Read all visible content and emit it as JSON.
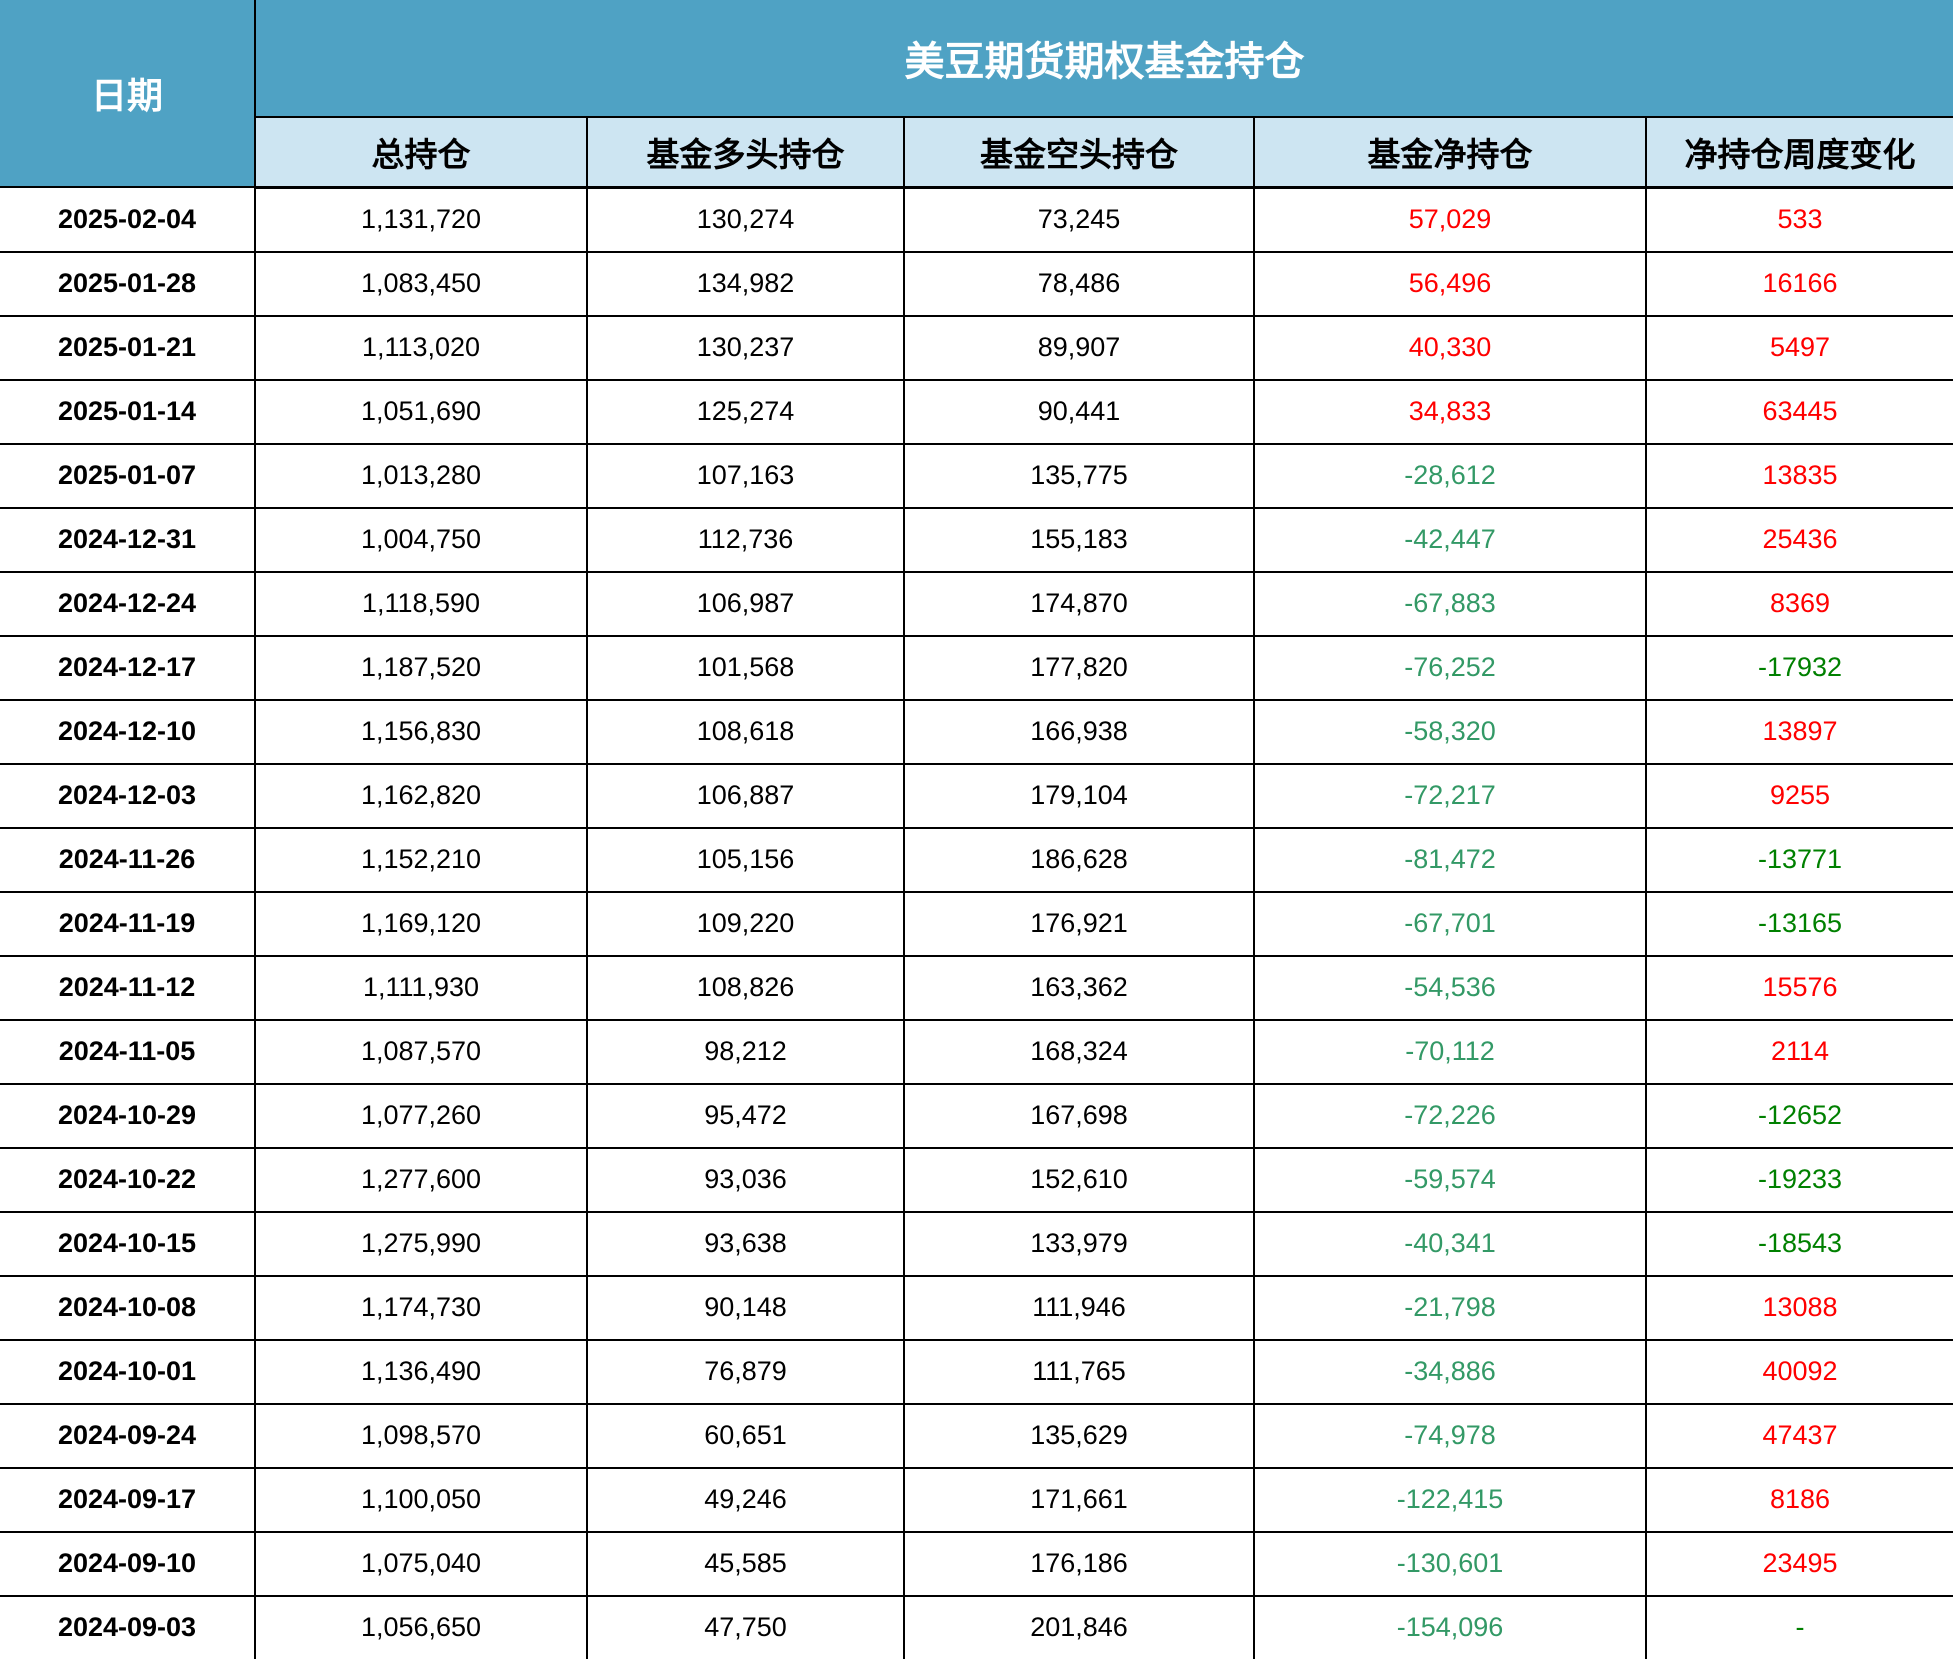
{
  "table": {
    "date_header": "日期",
    "group_header": "美豆期货期权基金持仓",
    "columns": [
      "总持仓",
      "基金多头持仓",
      "基金空头持仓",
      "基金净持仓",
      "净持仓周度变化"
    ],
    "colors": {
      "header_bg": "#4FA2C4",
      "subheader_bg": "#CDE5F2",
      "positive": "#FF0000",
      "negative_net": "#339966",
      "negative_weekly": "#008000",
      "grid": "#000000"
    },
    "rows": [
      {
        "date": "2025-02-04",
        "total": "1,131,720",
        "long": "130,274",
        "short": "73,245",
        "net": "57,029",
        "weekly": "533"
      },
      {
        "date": "2025-01-28",
        "total": "1,083,450",
        "long": "134,982",
        "short": "78,486",
        "net": "56,496",
        "weekly": "16166"
      },
      {
        "date": "2025-01-21",
        "total": "1,113,020",
        "long": "130,237",
        "short": "89,907",
        "net": "40,330",
        "weekly": "5497"
      },
      {
        "date": "2025-01-14",
        "total": "1,051,690",
        "long": "125,274",
        "short": "90,441",
        "net": "34,833",
        "weekly": "63445"
      },
      {
        "date": "2025-01-07",
        "total": "1,013,280",
        "long": "107,163",
        "short": "135,775",
        "net": "-28,612",
        "weekly": "13835"
      },
      {
        "date": "2024-12-31",
        "total": "1,004,750",
        "long": "112,736",
        "short": "155,183",
        "net": "-42,447",
        "weekly": "25436"
      },
      {
        "date": "2024-12-24",
        "total": "1,118,590",
        "long": "106,987",
        "short": "174,870",
        "net": "-67,883",
        "weekly": "8369"
      },
      {
        "date": "2024-12-17",
        "total": "1,187,520",
        "long": "101,568",
        "short": "177,820",
        "net": "-76,252",
        "weekly": "-17932"
      },
      {
        "date": "2024-12-10",
        "total": "1,156,830",
        "long": "108,618",
        "short": "166,938",
        "net": "-58,320",
        "weekly": "13897"
      },
      {
        "date": "2024-12-03",
        "total": "1,162,820",
        "long": "106,887",
        "short": "179,104",
        "net": "-72,217",
        "weekly": "9255"
      },
      {
        "date": "2024-11-26",
        "total": "1,152,210",
        "long": "105,156",
        "short": "186,628",
        "net": "-81,472",
        "weekly": "-13771"
      },
      {
        "date": "2024-11-19",
        "total": "1,169,120",
        "long": "109,220",
        "short": "176,921",
        "net": "-67,701",
        "weekly": "-13165"
      },
      {
        "date": "2024-11-12",
        "total": "1,111,930",
        "long": "108,826",
        "short": "163,362",
        "net": "-54,536",
        "weekly": "15576"
      },
      {
        "date": "2024-11-05",
        "total": "1,087,570",
        "long": "98,212",
        "short": "168,324",
        "net": "-70,112",
        "weekly": "2114"
      },
      {
        "date": "2024-10-29",
        "total": "1,077,260",
        "long": "95,472",
        "short": "167,698",
        "net": "-72,226",
        "weekly": "-12652"
      },
      {
        "date": "2024-10-22",
        "total": "1,277,600",
        "long": "93,036",
        "short": "152,610",
        "net": "-59,574",
        "weekly": "-19233"
      },
      {
        "date": "2024-10-15",
        "total": "1,275,990",
        "long": "93,638",
        "short": "133,979",
        "net": "-40,341",
        "weekly": "-18543"
      },
      {
        "date": "2024-10-08",
        "total": "1,174,730",
        "long": "90,148",
        "short": "111,946",
        "net": "-21,798",
        "weekly": "13088"
      },
      {
        "date": "2024-10-01",
        "total": "1,136,490",
        "long": "76,879",
        "short": "111,765",
        "net": "-34,886",
        "weekly": "40092"
      },
      {
        "date": "2024-09-24",
        "total": "1,098,570",
        "long": "60,651",
        "short": "135,629",
        "net": "-74,978",
        "weekly": "47437"
      },
      {
        "date": "2024-09-17",
        "total": "1,100,050",
        "long": "49,246",
        "short": "171,661",
        "net": "-122,415",
        "weekly": "8186"
      },
      {
        "date": "2024-09-10",
        "total": "1,075,040",
        "long": "45,585",
        "short": "176,186",
        "net": "-130,601",
        "weekly": "23495"
      },
      {
        "date": "2024-09-03",
        "total": "1,056,650",
        "long": "47,750",
        "short": "201,846",
        "net": "-154,096",
        "weekly": "-"
      }
    ]
  },
  "chart_data": {
    "type": "table",
    "title": "美豆期货期权基金持仓",
    "columns": [
      "日期",
      "总持仓",
      "基金多头持仓",
      "基金空头持仓",
      "基金净持仓",
      "净持仓周度变化"
    ],
    "rows": [
      [
        "2025-02-04",
        1131720,
        130274,
        73245,
        57029,
        533
      ],
      [
        "2025-01-28",
        1083450,
        134982,
        78486,
        56496,
        16166
      ],
      [
        "2025-01-21",
        1113020,
        130237,
        89907,
        40330,
        5497
      ],
      [
        "2025-01-14",
        1051690,
        125274,
        90441,
        34833,
        63445
      ],
      [
        "2025-01-07",
        1013280,
        107163,
        135775,
        -28612,
        13835
      ],
      [
        "2024-12-31",
        1004750,
        112736,
        155183,
        -42447,
        25436
      ],
      [
        "2024-12-24",
        1118590,
        106987,
        174870,
        -67883,
        8369
      ],
      [
        "2024-12-17",
        1187520,
        101568,
        177820,
        -76252,
        -17932
      ],
      [
        "2024-12-10",
        1156830,
        108618,
        166938,
        -58320,
        13897
      ],
      [
        "2024-12-03",
        1162820,
        106887,
        179104,
        -72217,
        9255
      ],
      [
        "2024-11-26",
        1152210,
        105156,
        186628,
        -81472,
        -13771
      ],
      [
        "2024-11-19",
        1169120,
        109220,
        176921,
        -67701,
        -13165
      ],
      [
        "2024-11-12",
        1111930,
        108826,
        163362,
        -54536,
        15576
      ],
      [
        "2024-11-05",
        1087570,
        98212,
        168324,
        -70112,
        2114
      ],
      [
        "2024-10-29",
        1077260,
        95472,
        167698,
        -72226,
        -12652
      ],
      [
        "2024-10-22",
        1277600,
        93036,
        152610,
        -59574,
        -19233
      ],
      [
        "2024-10-15",
        1275990,
        93638,
        133979,
        -40341,
        -18543
      ],
      [
        "2024-10-08",
        1174730,
        90148,
        111946,
        -21798,
        13088
      ],
      [
        "2024-10-01",
        1136490,
        76879,
        111765,
        -34886,
        40092
      ],
      [
        "2024-09-24",
        1098570,
        60651,
        135629,
        -74978,
        47437
      ],
      [
        "2024-09-17",
        1100050,
        49246,
        171661,
        -122415,
        8186
      ],
      [
        "2024-09-10",
        1075040,
        45585,
        176186,
        -130601,
        23495
      ],
      [
        "2024-09-03",
        1056650,
        47750,
        201846,
        -154096,
        null
      ]
    ],
    "color_rule": "net/weekly positive = red, negative = green; net负值色 #339966, 周度变化负值色 #008000"
  }
}
